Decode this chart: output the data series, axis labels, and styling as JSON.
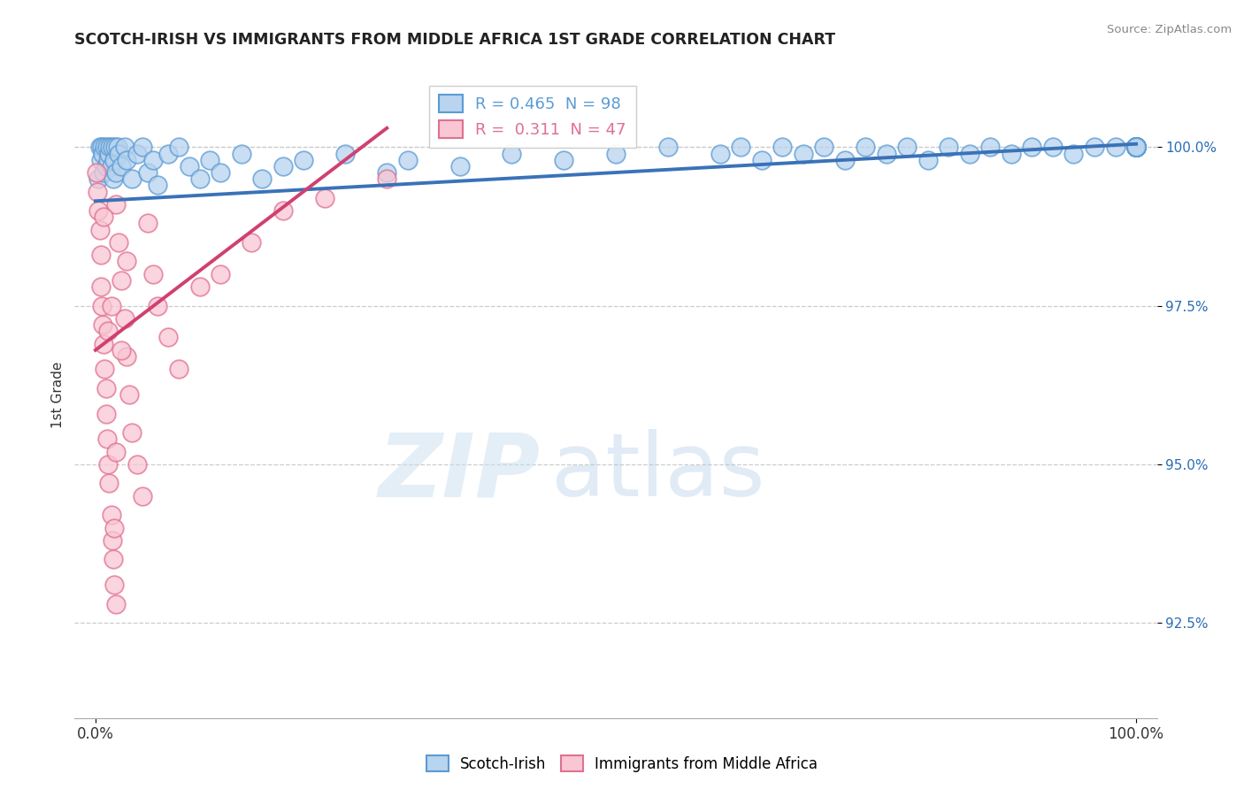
{
  "title": "SCOTCH-IRISH VS IMMIGRANTS FROM MIDDLE AFRICA 1ST GRADE CORRELATION CHART",
  "source_text": "Source: ZipAtlas.com",
  "ylabel": "1st Grade",
  "watermark_zip": "ZIP",
  "watermark_atlas": "atlas",
  "xlim": [
    -2,
    102
  ],
  "ylim": [
    91.0,
    101.2
  ],
  "yticks": [
    92.5,
    95.0,
    97.5,
    100.0
  ],
  "ytick_labels": [
    "92.5%",
    "95.0%",
    "97.5%",
    "100.0%"
  ],
  "xticks": [
    0.0,
    100.0
  ],
  "xtick_labels": [
    "0.0%",
    "100.0%"
  ],
  "blue_R": 0.465,
  "blue_N": 98,
  "pink_R": 0.311,
  "pink_N": 47,
  "blue_face_color": "#b8d4ee",
  "blue_edge_color": "#5b9bd5",
  "pink_face_color": "#f9c6d4",
  "pink_edge_color": "#e07090",
  "blue_line_color": "#3a72b8",
  "pink_line_color": "#d04070",
  "legend_blue_label": "Scotch-Irish",
  "legend_pink_label": "Immigrants from Middle Africa",
  "blue_trend_x": [
    0,
    100
  ],
  "blue_trend_y": [
    99.15,
    100.05
  ],
  "pink_trend_x": [
    0,
    28
  ],
  "pink_trend_y": [
    96.8,
    100.3
  ],
  "blue_x": [
    0.3,
    0.4,
    0.5,
    0.6,
    0.7,
    0.8,
    0.9,
    1.0,
    1.1,
    1.2,
    1.3,
    1.4,
    1.5,
    1.6,
    1.7,
    1.8,
    1.9,
    2.0,
    2.1,
    2.2,
    2.5,
    2.8,
    3.0,
    3.5,
    4.0,
    4.5,
    5.0,
    5.5,
    6.0,
    7.0,
    8.0,
    9.0,
    10.0,
    11.0,
    12.0,
    14.0,
    16.0,
    18.0,
    20.0,
    24.0,
    28.0,
    30.0,
    35.0,
    40.0,
    45.0,
    50.0,
    55.0,
    60.0,
    62.0,
    64.0,
    66.0,
    68.0,
    70.0,
    72.0,
    74.0,
    76.0,
    78.0,
    80.0,
    82.0,
    84.0,
    86.0,
    88.0,
    90.0,
    92.0,
    94.0,
    96.0,
    98.0,
    100.0,
    100.0,
    100.0,
    100.0,
    100.0,
    100.0,
    100.0,
    100.0,
    100.0,
    100.0,
    100.0,
    100.0,
    100.0,
    100.0,
    100.0,
    100.0,
    100.0,
    100.0,
    100.0,
    100.0,
    100.0,
    100.0,
    100.0,
    100.0,
    100.0,
    100.0,
    100.0,
    100.0,
    100.0,
    100.0,
    100.0
  ],
  "blue_y": [
    99.5,
    100.0,
    99.8,
    100.0,
    99.9,
    99.6,
    100.0,
    99.7,
    100.0,
    99.8,
    99.9,
    100.0,
    99.7,
    100.0,
    99.5,
    99.8,
    100.0,
    99.6,
    100.0,
    99.9,
    99.7,
    100.0,
    99.8,
    99.5,
    99.9,
    100.0,
    99.6,
    99.8,
    99.4,
    99.9,
    100.0,
    99.7,
    99.5,
    99.8,
    99.6,
    99.9,
    99.5,
    99.7,
    99.8,
    99.9,
    99.6,
    99.8,
    99.7,
    99.9,
    99.8,
    99.9,
    100.0,
    99.9,
    100.0,
    99.8,
    100.0,
    99.9,
    100.0,
    99.8,
    100.0,
    99.9,
    100.0,
    99.8,
    100.0,
    99.9,
    100.0,
    99.9,
    100.0,
    100.0,
    99.9,
    100.0,
    100.0,
    100.0,
    100.0,
    100.0,
    100.0,
    100.0,
    100.0,
    100.0,
    100.0,
    100.0,
    100.0,
    100.0,
    100.0,
    100.0,
    100.0,
    100.0,
    100.0,
    100.0,
    100.0,
    100.0,
    100.0,
    100.0,
    100.0,
    100.0,
    100.0,
    100.0,
    100.0,
    100.0,
    100.0,
    100.0,
    100.0,
    100.0
  ],
  "pink_x": [
    0.1,
    0.2,
    0.3,
    0.4,
    0.5,
    0.5,
    0.6,
    0.7,
    0.8,
    0.9,
    1.0,
    1.0,
    1.1,
    1.2,
    1.3,
    1.5,
    1.6,
    1.7,
    1.8,
    2.0,
    2.0,
    2.2,
    2.5,
    2.8,
    3.0,
    3.2,
    3.5,
    4.0,
    4.5,
    5.0,
    5.5,
    6.0,
    7.0,
    8.0,
    10.0,
    12.0,
    15.0,
    18.0,
    22.0,
    28.0,
    3.0,
    1.5,
    2.5,
    0.8,
    1.2,
    2.0,
    1.8
  ],
  "pink_y": [
    99.6,
    99.3,
    99.0,
    98.7,
    98.3,
    97.8,
    97.5,
    97.2,
    96.9,
    96.5,
    96.2,
    95.8,
    95.4,
    95.0,
    94.7,
    94.2,
    93.8,
    93.5,
    93.1,
    92.8,
    99.1,
    98.5,
    97.9,
    97.3,
    96.7,
    96.1,
    95.5,
    95.0,
    94.5,
    98.8,
    98.0,
    97.5,
    97.0,
    96.5,
    97.8,
    98.0,
    98.5,
    99.0,
    99.2,
    99.5,
    98.2,
    97.5,
    96.8,
    98.9,
    97.1,
    95.2,
    94.0
  ]
}
